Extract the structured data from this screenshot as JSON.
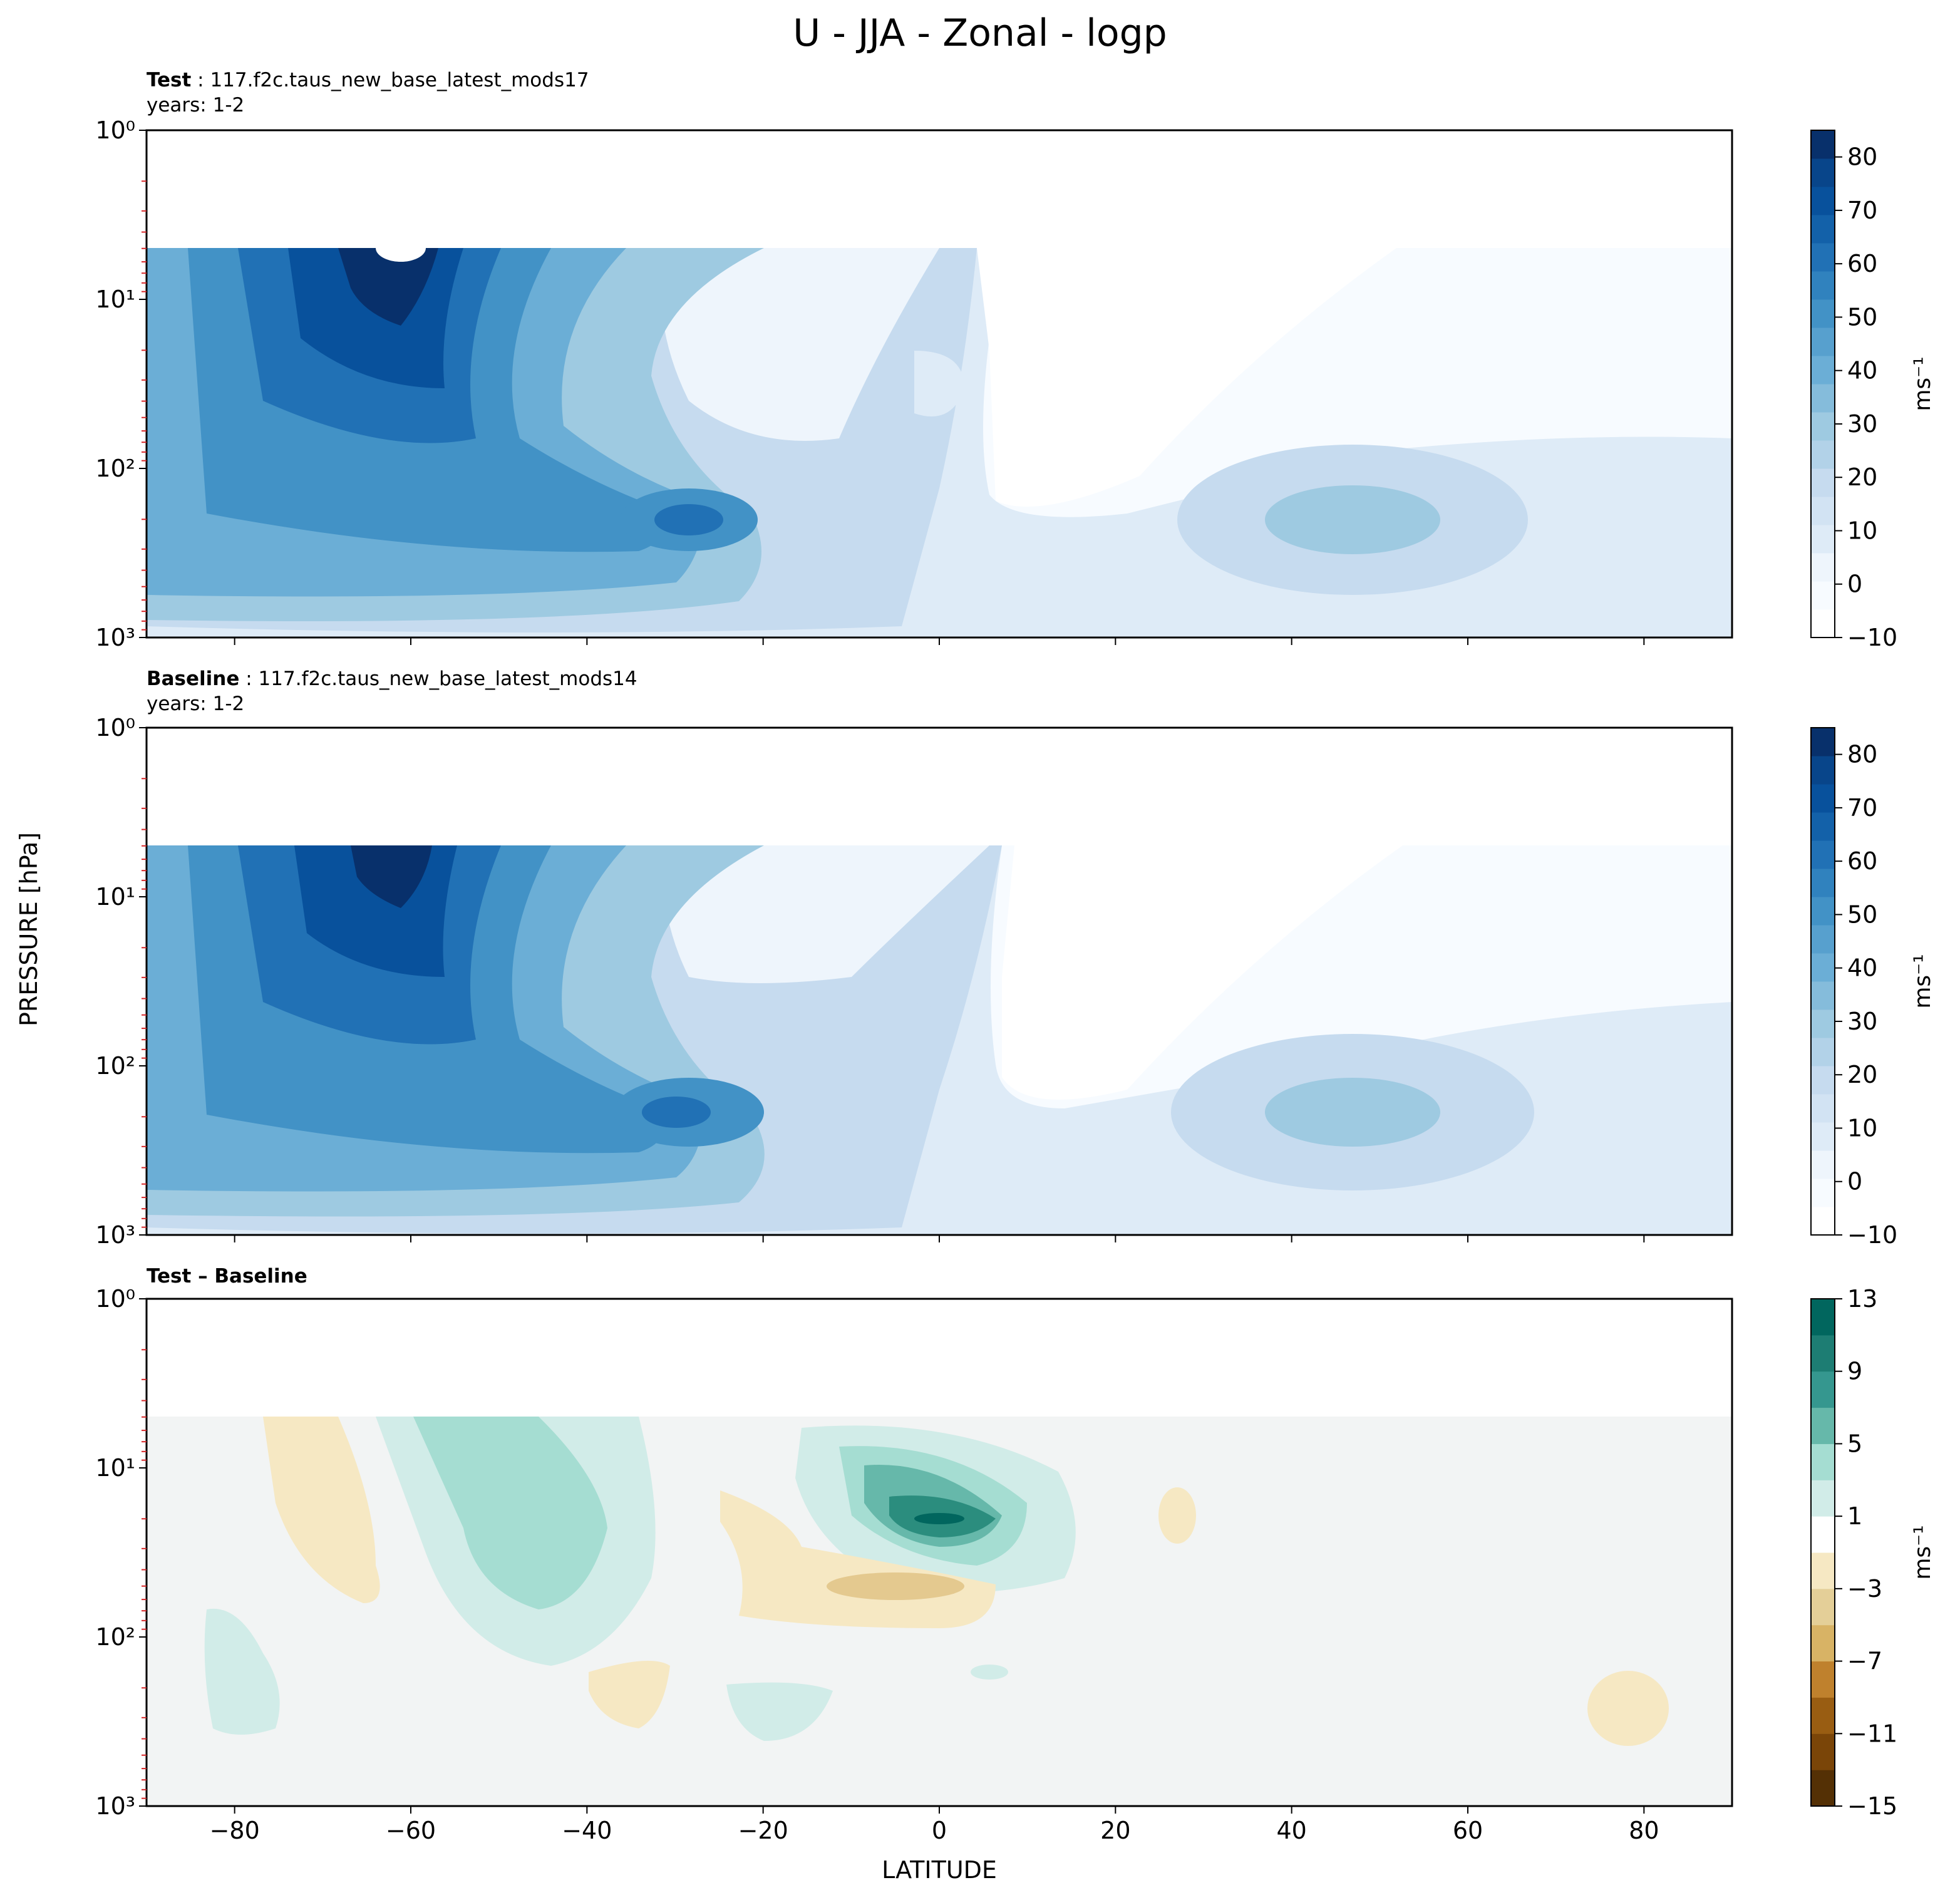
{
  "figure": {
    "title": "U - JJA - Zonal - logp",
    "xlabel": "LATITUDE",
    "ylabel": "PRESSURE [hPa]"
  },
  "panels": [
    {
      "name": "test",
      "label": "Test",
      "run": "117.f2c.taus_new_base_latest_mods17",
      "years": "years: 1-2",
      "colorbar_unit": "ms⁻¹",
      "colorbar_ticks": [
        "−10",
        "0",
        "10",
        "20",
        "30",
        "40",
        "50",
        "60",
        "70",
        "80"
      ]
    },
    {
      "name": "baseline",
      "label": "Baseline",
      "run": "117.f2c.taus_new_base_latest_mods14",
      "years": "years: 1-2",
      "colorbar_unit": "ms⁻¹",
      "colorbar_ticks": [
        "−10",
        "0",
        "10",
        "20",
        "30",
        "40",
        "50",
        "60",
        "70",
        "80"
      ]
    },
    {
      "name": "difference",
      "label": "Test – Baseline",
      "colorbar_unit": "ms⁻¹",
      "colorbar_ticks": [
        "−15",
        "−11",
        "−7",
        "−3",
        "1",
        "5",
        "9",
        "13"
      ]
    }
  ],
  "axes": {
    "x_ticks": [
      "−80",
      "−60",
      "−40",
      "−20",
      "0",
      "20",
      "40",
      "60",
      "80"
    ],
    "y_ticks": [
      "10⁰",
      "10¹",
      "10²",
      "10³"
    ]
  },
  "chart_data": [
    {
      "type": "heatmap",
      "title": "Test : 117.f2c.taus_new_base_latest_mods17",
      "xlabel": "LATITUDE",
      "ylabel": "PRESSURE [hPa]",
      "xlim": [
        -90,
        90
      ],
      "ylim_hPa": [
        1000,
        1
      ],
      "y_scale": "log",
      "data_top_hPa": 5,
      "colormap": "Blues",
      "levels": [
        -10,
        -5,
        0,
        5,
        10,
        15,
        20,
        25,
        30,
        35,
        40,
        45,
        50,
        55,
        60,
        65,
        70,
        75,
        80,
        85
      ],
      "features": [
        {
          "kind": "jet",
          "lat": -62,
          "p_hPa": 5,
          "max": 85
        },
        {
          "kind": "jet",
          "lat": -29,
          "p_hPa": 200,
          "max": 45
        },
        {
          "kind": "jet",
          "lat": 47,
          "p_hPa": 200,
          "max": 25
        },
        {
          "kind": "easterlies",
          "lat": 15,
          "p_hPa": 30,
          "max": -10
        }
      ]
    },
    {
      "type": "heatmap",
      "title": "Baseline : 117.f2c.taus_new_base_latest_mods14",
      "xlabel": "LATITUDE",
      "ylabel": "PRESSURE [hPa]",
      "xlim": [
        -90,
        90
      ],
      "ylim_hPa": [
        1000,
        1
      ],
      "y_scale": "log",
      "data_top_hPa": 5,
      "colormap": "Blues",
      "levels": [
        -10,
        -5,
        0,
        5,
        10,
        15,
        20,
        25,
        30,
        35,
        40,
        45,
        50,
        55,
        60,
        65,
        70,
        75,
        80,
        85
      ],
      "features": [
        {
          "kind": "jet",
          "lat": -62,
          "p_hPa": 5,
          "max": 80
        },
        {
          "kind": "jet",
          "lat": -30,
          "p_hPa": 200,
          "max": 45
        },
        {
          "kind": "jet",
          "lat": 46,
          "p_hPa": 200,
          "max": 25
        },
        {
          "kind": "easterlies",
          "lat": 15,
          "p_hPa": 30,
          "max": -10
        }
      ]
    },
    {
      "type": "heatmap",
      "title": "Test – Baseline",
      "xlabel": "LATITUDE",
      "ylabel": "PRESSURE [hPa]",
      "xlim": [
        -90,
        90
      ],
      "ylim_hPa": [
        1000,
        1
      ],
      "y_scale": "log",
      "data_top_hPa": 5,
      "colormap": "BrBG",
      "levels": [
        -15,
        -13,
        -11,
        -9,
        -7,
        -5,
        -3,
        -1,
        1,
        3,
        5,
        7,
        9,
        11,
        13
      ],
      "features": [
        {
          "kind": "positive",
          "lat": 0,
          "p_hPa": 20,
          "max": 13
        },
        {
          "kind": "positive",
          "lat": -45,
          "p_hPa": 20,
          "max": 5
        },
        {
          "kind": "negative",
          "lat": -5,
          "p_hPa": 50,
          "max": -5
        }
      ]
    }
  ]
}
